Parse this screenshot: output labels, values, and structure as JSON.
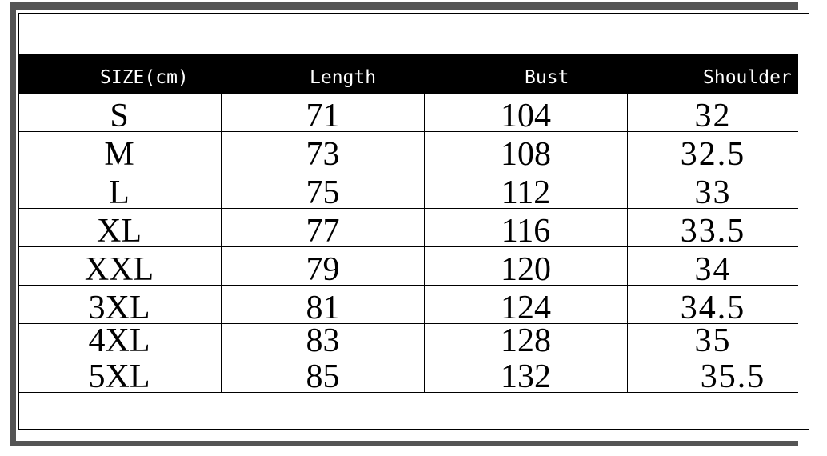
{
  "headers": [
    "SIZE(cm)",
    "Length",
    "Bust",
    "Shoulder"
  ],
  "rows": [
    [
      "S",
      "71",
      "104",
      "32"
    ],
    [
      "M",
      "73",
      "108",
      "32.5"
    ],
    [
      "L",
      "75",
      "112",
      "33"
    ],
    [
      "XL",
      "77",
      "116",
      "33.5"
    ],
    [
      "XXL",
      "79",
      "120",
      "34"
    ],
    [
      "3XL",
      "81",
      "124",
      "34.5"
    ],
    [
      "4XL",
      "83",
      "128",
      "35"
    ],
    [
      "5XL",
      "85",
      "132",
      "35.5"
    ]
  ],
  "colors": {
    "header_bg": "#000000",
    "header_text": "#ffffff",
    "frame": "#555555"
  }
}
